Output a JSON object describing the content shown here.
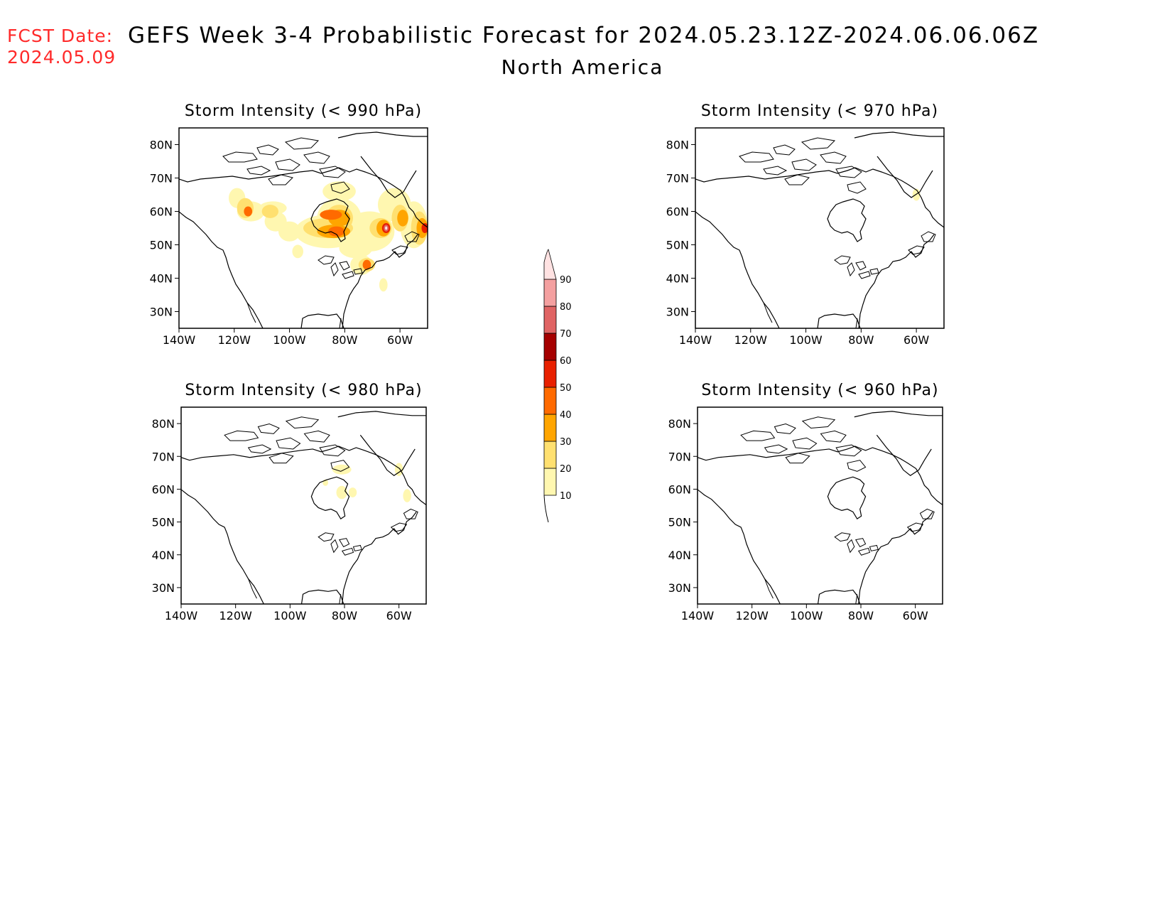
{
  "header": {
    "fcst_label": "FCST Date:",
    "fcst_date": "2024.05.09",
    "title": "GEFS Week 3-4 Probabilistic Forecast for 2024.05.23.12Z-2024.06.06.06Z",
    "subtitle": "North America"
  },
  "map_region": {
    "lon_range": [
      -140,
      -50
    ],
    "lat_range": [
      25,
      85
    ]
  },
  "axes": {
    "lat_ticks": [
      {
        "v": 30,
        "label": "30N"
      },
      {
        "v": 40,
        "label": "40N"
      },
      {
        "v": 50,
        "label": "50N"
      },
      {
        "v": 60,
        "label": "60N"
      },
      {
        "v": 70,
        "label": "70N"
      },
      {
        "v": 80,
        "label": "80N"
      }
    ],
    "lon_ticks": [
      {
        "v": -140,
        "label": "140W"
      },
      {
        "v": -120,
        "label": "120W"
      },
      {
        "v": -100,
        "label": "100W"
      },
      {
        "v": -80,
        "label": "80W"
      },
      {
        "v": -60,
        "label": "60W"
      }
    ]
  },
  "colorbar": {
    "levels": [
      10,
      20,
      30,
      40,
      50,
      60,
      70,
      80,
      90
    ],
    "colors": [
      "#fff7b0",
      "#ffe070",
      "#ffa500",
      "#ff6a00",
      "#e82000",
      "#a50000",
      "#e06464",
      "#f4a0a0",
      "#ffe2e2"
    ]
  },
  "panels": [
    {
      "id": "p990",
      "title": "Storm Intensity (< 990 hPa)",
      "probability_areas": [
        {
          "lon": -119,
          "lat": 64,
          "level": 10,
          "rx": 3,
          "ry": 3
        },
        {
          "lon": -114,
          "lat": 60,
          "level": 10,
          "rx": 5,
          "ry": 3
        },
        {
          "lon": -105,
          "lat": 57,
          "level": 10,
          "rx": 4,
          "ry": 3
        },
        {
          "lon": -106,
          "lat": 61,
          "level": 10,
          "rx": 5,
          "ry": 2
        },
        {
          "lon": -100,
          "lat": 54,
          "level": 10,
          "rx": 4,
          "ry": 3
        },
        {
          "lon": -97,
          "lat": 48,
          "level": 10,
          "rx": 2,
          "ry": 2
        },
        {
          "lon": -86,
          "lat": 54,
          "level": 10,
          "rx": 12,
          "ry": 5
        },
        {
          "lon": -82,
          "lat": 58,
          "level": 10,
          "rx": 8,
          "ry": 6
        },
        {
          "lon": -82,
          "lat": 66,
          "level": 10,
          "rx": 6,
          "ry": 3
        },
        {
          "lon": -76,
          "lat": 49,
          "level": 10,
          "rx": 6,
          "ry": 3
        },
        {
          "lon": -71,
          "lat": 54,
          "level": 10,
          "rx": 9,
          "ry": 6
        },
        {
          "lon": -62,
          "lat": 62,
          "level": 10,
          "rx": 6,
          "ry": 5
        },
        {
          "lon": -55,
          "lat": 56,
          "level": 10,
          "rx": 5,
          "ry": 7
        },
        {
          "lon": -74,
          "lat": 44,
          "level": 10,
          "rx": 4,
          "ry": 3
        },
        {
          "lon": -66,
          "lat": 38,
          "level": 10,
          "rx": 1.5,
          "ry": 2
        },
        {
          "lon": -116,
          "lat": 61,
          "level": 20,
          "rx": 3,
          "ry": 3
        },
        {
          "lon": -107,
          "lat": 60,
          "level": 20,
          "rx": 3,
          "ry": 2
        },
        {
          "lon": -86,
          "lat": 55,
          "level": 20,
          "rx": 9,
          "ry": 3
        },
        {
          "lon": -82,
          "lat": 58,
          "level": 20,
          "rx": 5,
          "ry": 4
        },
        {
          "lon": -67,
          "lat": 55,
          "level": 20,
          "rx": 4,
          "ry": 3
        },
        {
          "lon": -60,
          "lat": 58,
          "level": 20,
          "rx": 3,
          "ry": 4
        },
        {
          "lon": -53,
          "lat": 55,
          "level": 20,
          "rx": 3,
          "ry": 5
        },
        {
          "lon": -72,
          "lat": 44,
          "level": 20,
          "rx": 3,
          "ry": 2
        },
        {
          "lon": -84,
          "lat": 54,
          "level": 30,
          "rx": 6,
          "ry": 2
        },
        {
          "lon": -82,
          "lat": 58,
          "level": 30,
          "rx": 4,
          "ry": 2.5
        },
        {
          "lon": -66,
          "lat": 55,
          "level": 30,
          "rx": 2.5,
          "ry": 2.5
        },
        {
          "lon": -59,
          "lat": 58,
          "level": 30,
          "rx": 2,
          "ry": 2.5
        },
        {
          "lon": -52,
          "lat": 55,
          "level": 30,
          "rx": 2,
          "ry": 3
        },
        {
          "lon": -85,
          "lat": 59,
          "level": 40,
          "rx": 4,
          "ry": 1.5
        },
        {
          "lon": -83,
          "lat": 54,
          "level": 40,
          "rx": 3,
          "ry": 1.5
        },
        {
          "lon": -115,
          "lat": 60,
          "level": 40,
          "rx": 1.5,
          "ry": 1.5
        },
        {
          "lon": -72,
          "lat": 44,
          "level": 40,
          "rx": 1.5,
          "ry": 1.5
        },
        {
          "lon": -65,
          "lat": 55,
          "level": 50,
          "rx": 1.5,
          "ry": 1.5
        },
        {
          "lon": -51,
          "lat": 55,
          "level": 50,
          "rx": 1.2,
          "ry": 1.5
        },
        {
          "lon": -65,
          "lat": 55,
          "level": 70,
          "rx": 0.9,
          "ry": 1
        },
        {
          "lon": -65,
          "lat": 55,
          "level": 90,
          "rx": 0.4,
          "ry": 0.5
        }
      ]
    },
    {
      "id": "p970",
      "title": "Storm Intensity (< 970 hPa)",
      "probability_areas": [
        {
          "lon": -60,
          "lat": 65,
          "level": 10,
          "rx": 1.4,
          "ry": 1.8
        }
      ]
    },
    {
      "id": "p980",
      "title": "Storm Intensity (< 980 hPa)",
      "probability_areas": [
        {
          "lon": -81,
          "lat": 66,
          "level": 10,
          "rx": 3.5,
          "ry": 1.5
        },
        {
          "lon": -60,
          "lat": 66,
          "level": 10,
          "rx": 1.5,
          "ry": 2
        },
        {
          "lon": -81,
          "lat": 59,
          "level": 10,
          "rx": 2,
          "ry": 2
        },
        {
          "lon": -87,
          "lat": 62,
          "level": 10,
          "rx": 1,
          "ry": 1
        },
        {
          "lon": -77,
          "lat": 59,
          "level": 10,
          "rx": 1.5,
          "ry": 1.5
        },
        {
          "lon": -57,
          "lat": 58,
          "level": 10,
          "rx": 1.5,
          "ry": 2
        }
      ]
    },
    {
      "id": "p960",
      "title": "Storm Intensity (< 960 hPa)",
      "probability_areas": []
    }
  ]
}
